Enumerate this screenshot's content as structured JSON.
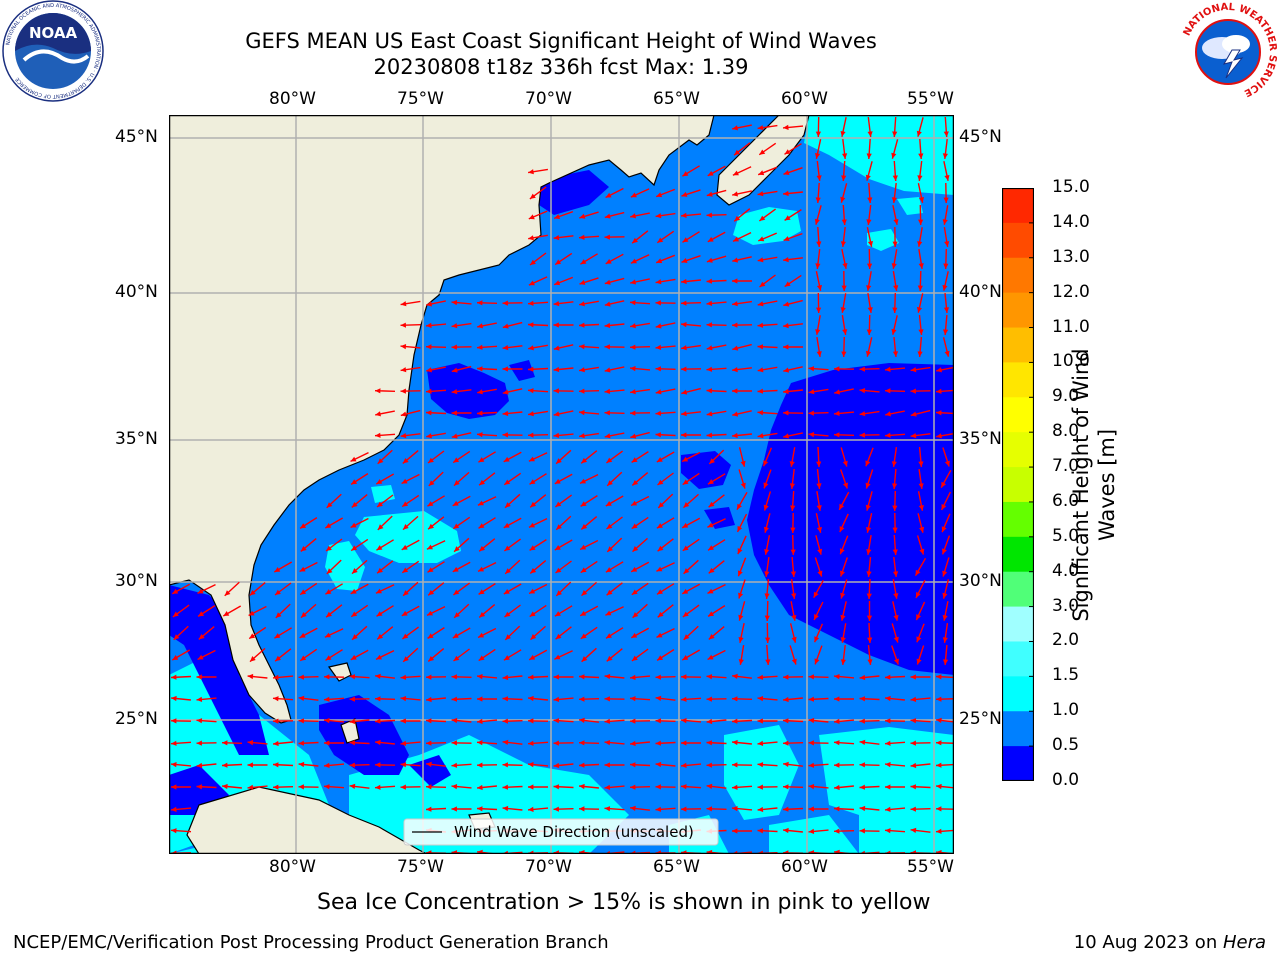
{
  "header": {
    "title_line1": "GEFS MEAN US East Coast Significant Height of Wind Waves",
    "title_line2": "20230808 t18z 336h fcst   Max: 1.39"
  },
  "logos": {
    "noaa_text": "NOAA",
    "noaa_ring_text": "NATIONAL OCEANIC AND ATMOSPHERIC ADMINISTRATION · U.S. DEPARTMENT OF COMMERCE",
    "nws_ring_text": "NATIONAL WEATHER SERVICE"
  },
  "map": {
    "lon_ticks": [
      "80°W",
      "75°W",
      "70°W",
      "65°W",
      "60°W",
      "55°W"
    ],
    "lat_ticks": [
      "45°N",
      "40°N",
      "35°N",
      "30°N",
      "25°N"
    ],
    "lon_range": [
      -85,
      -54.3
    ],
    "lat_range": [
      20.5,
      46
    ],
    "legend_label": "Wind Wave Direction (unscaled)",
    "colors": {
      "land": "#efeedc",
      "grid": "#b0b0b0",
      "arrow": "#ff0000"
    }
  },
  "colorbar": {
    "label_line1": "Significant Height of Wind",
    "label_line2": "Waves [m]",
    "tick_labels": [
      "15.0",
      "14.0",
      "13.0",
      "12.0",
      "11.0",
      "10.0",
      "9.0",
      "8.0",
      "7.0",
      "6.0",
      "5.0",
      "4.0",
      "3.0",
      "2.0",
      "1.5",
      "1.0",
      "0.5",
      "0.0"
    ],
    "bands": [
      {
        "range": "0.0-0.5",
        "color": "#0000ff"
      },
      {
        "range": "0.5-1.0",
        "color": "#0080ff"
      },
      {
        "range": "1.0-1.5",
        "color": "#00ffff"
      },
      {
        "range": "1.5-2.0",
        "color": "#40ffff"
      },
      {
        "range": "2.0-3.0",
        "color": "#a0ffff"
      },
      {
        "range": "3.0-4.0",
        "color": "#50ff78"
      },
      {
        "range": "4.0-5.0",
        "color": "#00e600"
      },
      {
        "range": "5.0-6.0",
        "color": "#64ff00"
      },
      {
        "range": "6.0-7.0",
        "color": "#c8ff00"
      },
      {
        "range": "7.0-8.0",
        "color": "#e6ff00"
      },
      {
        "range": "8.0-9.0",
        "color": "#ffff00"
      },
      {
        "range": "9.0-10.0",
        "color": "#ffe600"
      },
      {
        "range": "10.0-11.0",
        "color": "#ffbe00"
      },
      {
        "range": "11.0-12.0",
        "color": "#ff9600"
      },
      {
        "range": "12.0-13.0",
        "color": "#ff7800"
      },
      {
        "range": "13.0-14.0",
        "color": "#ff4b00"
      },
      {
        "range": "14.0-15.0",
        "color": "#ff2800"
      },
      {
        "range": "15.0",
        "color": "#ff0000"
      }
    ]
  },
  "caption": "Sea Ice Concentration > 15% is shown in pink to yellow",
  "footer": {
    "left": "NCEP/EMC/Verification Post Processing Product Generation Branch",
    "date": "10 Aug 2023 on ",
    "machine": "Hera"
  }
}
